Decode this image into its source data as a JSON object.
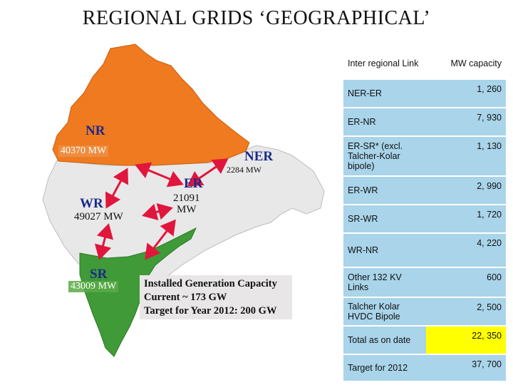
{
  "title": "REGIONAL GRIDS ‘GEOGRAPHICAL’",
  "colors": {
    "nr": "#f07a1f",
    "sr": "#3f9a37",
    "middle": "#e8e8e8",
    "arrow": "#e0163c",
    "table_cell": "#a9d4ea",
    "highlight": "#ffff00"
  },
  "regions": {
    "nr": {
      "name": "NR",
      "capacity": "40370 MW"
    },
    "ner": {
      "name": "NER"
    },
    "er": {
      "name": "ER",
      "capacity": "21091\nMW"
    },
    "wr": {
      "name": "WR",
      "capacity": "49027 MW"
    },
    "sr": {
      "name": "SR",
      "capacity": "43009 MW"
    },
    "link_label": "2284 MW"
  },
  "generation": {
    "line1": "Installed Generation Capacity",
    "line2": "Current ~ 173 GW",
    "line3": "Target for Year 2012: 200 GW"
  },
  "table": {
    "header_link": "Inter regional Link",
    "header_capacity": "MW capacity",
    "rows": [
      {
        "link": "NER-ER",
        "capacity": "1, 260"
      },
      {
        "link": "ER-NR",
        "capacity": "7, 930"
      },
      {
        "link": "ER-SR* (excl. Talcher-Kolar bipole)",
        "capacity": "1, 130"
      },
      {
        "link": "ER-WR",
        "capacity": "2, 990"
      },
      {
        "link": "SR-WR",
        "capacity": "1, 720"
      },
      {
        "link": "WR-NR",
        "capacity": "4, 220"
      },
      {
        "link": "Other 132 KV Links",
        "capacity": "600"
      },
      {
        "link": "Talcher Kolar HVDC Bipole",
        "capacity": "2, 500"
      },
      {
        "link": "Total as on date",
        "capacity": "22, 350"
      },
      {
        "link": "Target for 2012",
        "capacity": "37, 700"
      }
    ]
  }
}
